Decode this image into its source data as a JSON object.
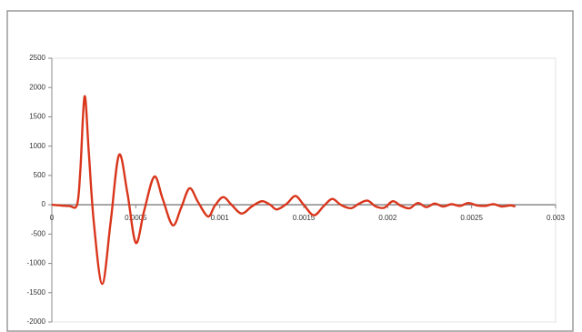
{
  "chart_data": {
    "type": "line",
    "x": [
      0,
      0.0001,
      0.00015,
      0.00017,
      0.000195,
      0.00022,
      0.00025,
      0.0003,
      0.00035,
      0.0004,
      0.00045,
      0.0005,
      0.00055,
      0.00061,
      0.00066,
      0.00072,
      0.00077,
      0.00082,
      0.00087,
      0.00093,
      0.00097,
      0.00102,
      0.00107,
      0.00113,
      0.00119,
      0.00125,
      0.0013,
      0.00134,
      0.0014,
      0.00145,
      0.0015,
      0.00156,
      0.00162,
      0.00167,
      0.00172,
      0.00178,
      0.00183,
      0.00188,
      0.00193,
      0.00198,
      0.00203,
      0.00208,
      0.00213,
      0.00218,
      0.00223,
      0.00228,
      0.00233,
      0.00238,
      0.00243,
      0.00248,
      0.00253,
      0.00258,
      0.00263,
      0.00268,
      0.00273,
      0.00276
    ],
    "values": [
      0,
      -20,
      0,
      600,
      1850,
      900,
      -300,
      -1350,
      -300,
      850,
      200,
      -650,
      -100,
      480,
      100,
      -350,
      -50,
      280,
      50,
      -200,
      -20,
      130,
      0,
      -150,
      -30,
      60,
      0,
      -80,
      20,
      150,
      0,
      -180,
      -20,
      100,
      0,
      -60,
      20,
      70,
      -30,
      -50,
      60,
      -20,
      -60,
      30,
      -40,
      20,
      -30,
      10,
      -20,
      30,
      -10,
      -20,
      10,
      -30,
      -10,
      -30
    ],
    "color": "#d9361c",
    "xlim": [
      0,
      0.003
    ],
    "xticks": [
      0,
      0.0005,
      0.001,
      0.0015,
      0.002,
      0.0025,
      0.003
    ],
    "ylim": [
      -2000,
      2500
    ],
    "yticks": [
      -2000,
      -1500,
      -1000,
      -500,
      0,
      500,
      1000,
      1500,
      2000,
      2500
    ]
  }
}
